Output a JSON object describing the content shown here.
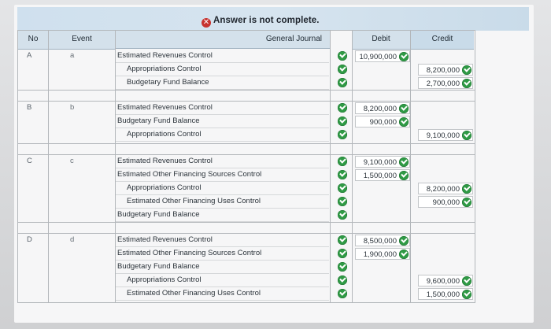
{
  "banner": {
    "status": "Answer is not complete."
  },
  "headers": {
    "no": "No",
    "event": "Event",
    "journal": "General Journal",
    "debit": "Debit",
    "credit": "Credit"
  },
  "rows": [
    {
      "no": "A",
      "event": "a",
      "lines": [
        {
          "account": "Estimated Revenues Control",
          "debit": "10,900,000",
          "credit": ""
        },
        {
          "account": "Appropriations Control",
          "debit": "",
          "credit": "8,200,000"
        },
        {
          "account": "Budgetary Fund Balance",
          "debit": "",
          "credit": "2,700,000"
        }
      ]
    },
    {
      "no": "B",
      "event": "b",
      "lines": [
        {
          "account": "Estimated Revenues Control",
          "debit": "8,200,000",
          "credit": ""
        },
        {
          "account": "Budgetary Fund Balance",
          "debit": "900,000",
          "credit": ""
        },
        {
          "account": "Appropriations Control",
          "debit": "",
          "credit": "9,100,000"
        }
      ]
    },
    {
      "no": "C",
      "event": "c",
      "lines": [
        {
          "account": "Estimated Revenues Control",
          "debit": "9,100,000",
          "credit": ""
        },
        {
          "account": "Estimated Other Financing Sources Control",
          "debit": "1,500,000",
          "credit": ""
        },
        {
          "account": "Appropriations Control",
          "debit": "",
          "credit": "8,200,000"
        },
        {
          "account": "Estimated Other Financing Uses Control",
          "debit": "",
          "credit": "900,000"
        },
        {
          "account": "Budgetary Fund Balance",
          "debit": "",
          "credit": ""
        }
      ]
    },
    {
      "no": "D",
      "event": "d",
      "lines": [
        {
          "account": "Estimated Revenues Control",
          "debit": "8,500,000",
          "credit": ""
        },
        {
          "account": "Estimated Other Financing Sources Control",
          "debit": "1,900,000",
          "credit": ""
        },
        {
          "account": "Budgetary Fund Balance",
          "debit": "",
          "credit": ""
        },
        {
          "account": "Appropriations Control",
          "debit": "",
          "credit": "9,600,000"
        },
        {
          "account": "Estimated Other Financing Uses Control",
          "debit": "",
          "credit": "1,500,000"
        }
      ]
    }
  ],
  "colors": {
    "check": "#2f9a45",
    "error": "#c7322e",
    "header": "#d4e1eb"
  }
}
